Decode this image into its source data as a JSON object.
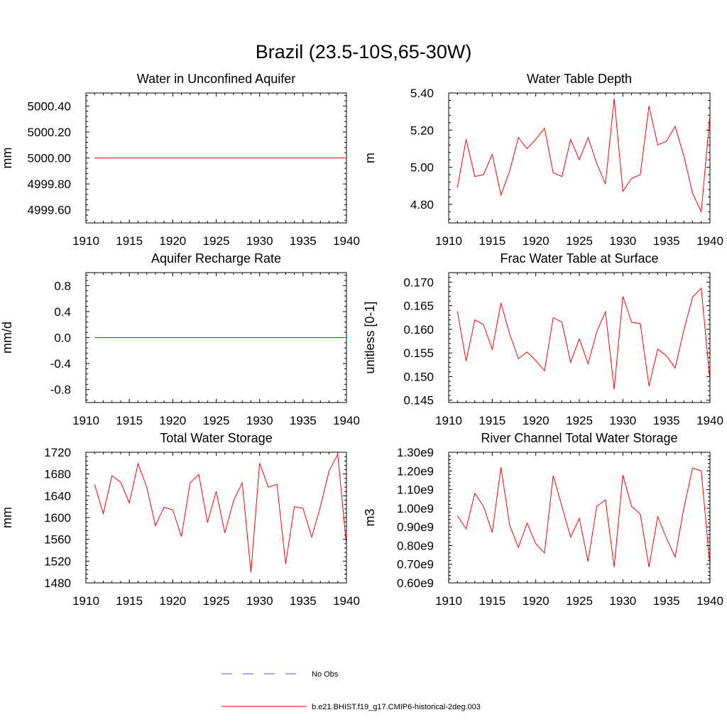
{
  "figure": {
    "title": "Brazil (23.5-10S,65-30W)"
  },
  "legend": {
    "entries": [
      {
        "label": "No Obs",
        "color": "#5a5ad8",
        "style": "dashed"
      },
      {
        "label": "b.e21.BHIST.f19_g17.CMIP6-historical-2deg.003",
        "color": "#ff0000",
        "style": "solid"
      }
    ]
  },
  "chart_data": [
    {
      "type": "line",
      "title": "Water in Unconfined Aquifer",
      "xlabel": "",
      "ylabel": "mm",
      "xlim": [
        1910,
        1940
      ],
      "ylim": [
        4999.5,
        5000.5
      ],
      "xticks": [
        1910,
        1915,
        1920,
        1925,
        1930,
        1935,
        1940
      ],
      "xtick_labels": [
        "1910",
        "1915",
        "1920",
        "1925",
        "1930",
        "1935",
        "1940"
      ],
      "yticks": [
        4999.6,
        4999.8,
        5000.0,
        5000.2,
        5000.4
      ],
      "ytick_labels": [
        "4999.60",
        "4999.80",
        "5000.00",
        "5000.20",
        "5000.40"
      ],
      "grid": false,
      "series": [
        {
          "color": "#ff0000",
          "x": [
            1911,
            1912,
            1913,
            1914,
            1915,
            1916,
            1917,
            1918,
            1919,
            1920,
            1921,
            1922,
            1923,
            1924,
            1925,
            1926,
            1927,
            1928,
            1929,
            1930,
            1931,
            1932,
            1933,
            1934,
            1935,
            1936,
            1937,
            1938,
            1939,
            1940
          ],
          "y": [
            5000,
            5000,
            5000,
            5000,
            5000,
            5000,
            5000,
            5000,
            5000,
            5000,
            5000,
            5000,
            5000,
            5000,
            5000,
            5000,
            5000,
            5000,
            5000,
            5000,
            5000,
            5000,
            5000,
            5000,
            5000,
            5000,
            5000,
            5000,
            5000,
            5000
          ]
        }
      ]
    },
    {
      "type": "line",
      "title": "Water Table Depth",
      "xlabel": "",
      "ylabel": "m",
      "xlim": [
        1910,
        1940
      ],
      "ylim": [
        4.7,
        5.4
      ],
      "xticks": [
        1910,
        1915,
        1920,
        1925,
        1930,
        1935,
        1940
      ],
      "xtick_labels": [
        "1910",
        "1915",
        "1920",
        "1925",
        "1930",
        "1935",
        "1940"
      ],
      "yticks": [
        4.8,
        5.0,
        5.2,
        5.4
      ],
      "ytick_labels": [
        "4.80",
        "5.00",
        "5.20",
        "5.40"
      ],
      "grid": false,
      "series": [
        {
          "color": "#ff0000",
          "x": [
            1911,
            1912,
            1913,
            1914,
            1915,
            1916,
            1917,
            1918,
            1919,
            1920,
            1921,
            1922,
            1923,
            1924,
            1925,
            1926,
            1927,
            1928,
            1929,
            1930,
            1931,
            1932,
            1933,
            1934,
            1935,
            1936,
            1937,
            1938,
            1939,
            1940
          ],
          "y": [
            4.89,
            5.15,
            4.95,
            4.96,
            5.07,
            4.85,
            4.98,
            5.16,
            5.1,
            5.15,
            5.21,
            4.97,
            4.95,
            5.15,
            5.04,
            5.16,
            5.02,
            4.91,
            5.37,
            4.87,
            4.94,
            4.96,
            5.33,
            5.12,
            5.14,
            5.22,
            5.06,
            4.86,
            4.76,
            5.28
          ]
        }
      ]
    },
    {
      "type": "line",
      "title": "Aquifer Recharge Rate",
      "xlabel": "",
      "ylabel": "mm/d",
      "xlim": [
        1910,
        1940
      ],
      "ylim": [
        -1.0,
        1.0
      ],
      "xticks": [
        1910,
        1915,
        1920,
        1925,
        1930,
        1935,
        1940
      ],
      "xtick_labels": [
        "1910",
        "1915",
        "1920",
        "1925",
        "1930",
        "1935",
        "1940"
      ],
      "yticks": [
        -0.8,
        -0.4,
        0.0,
        0.4,
        0.8
      ],
      "ytick_labels": [
        "-0.8",
        "-0.4",
        "0.0",
        "0.4",
        "0.8"
      ],
      "grid": false,
      "series": [
        {
          "color": "#ff0000",
          "x": [
            1911,
            1912,
            1913,
            1914,
            1915,
            1916,
            1917,
            1918,
            1919,
            1920,
            1921,
            1922,
            1923,
            1924,
            1925,
            1926,
            1927,
            1928,
            1929,
            1930,
            1931,
            1932,
            1933,
            1934,
            1935,
            1936,
            1937,
            1938,
            1939,
            1940
          ],
          "y": [
            0,
            0,
            0,
            0,
            0,
            0,
            0,
            0,
            0,
            0,
            0,
            0,
            0,
            0,
            0,
            0,
            0,
            0,
            0,
            0,
            0,
            0,
            0,
            0,
            0,
            0,
            0,
            0,
            0,
            0
          ]
        }
      ]
    },
    {
      "type": "line",
      "title": "Frac Water Table at Surface",
      "xlabel": "",
      "ylabel": "unitless [0-1]",
      "xlim": [
        1910,
        1940
      ],
      "ylim": [
        0.1445,
        0.172
      ],
      "xticks": [
        1910,
        1915,
        1920,
        1925,
        1930,
        1935,
        1940
      ],
      "xtick_labels": [
        "1910",
        "1915",
        "1920",
        "1925",
        "1930",
        "1935",
        "1940"
      ],
      "yticks": [
        0.145,
        0.15,
        0.155,
        0.16,
        0.165,
        0.17
      ],
      "ytick_labels": [
        "0.145",
        "0.150",
        "0.155",
        "0.160",
        "0.165",
        "0.170"
      ],
      "grid": false,
      "series": [
        {
          "color": "#ff0000",
          "x": [
            1911,
            1912,
            1913,
            1914,
            1915,
            1916,
            1917,
            1918,
            1919,
            1920,
            1921,
            1922,
            1923,
            1924,
            1925,
            1926,
            1927,
            1928,
            1929,
            1930,
            1931,
            1932,
            1933,
            1934,
            1935,
            1936,
            1937,
            1938,
            1939,
            1940
          ],
          "y": [
            0.1638,
            0.1533,
            0.162,
            0.161,
            0.1557,
            0.1656,
            0.159,
            0.1538,
            0.1552,
            0.1534,
            0.1512,
            0.1625,
            0.1615,
            0.153,
            0.158,
            0.1527,
            0.1595,
            0.1637,
            0.1473,
            0.167,
            0.1615,
            0.1612,
            0.148,
            0.1558,
            0.1544,
            0.1518,
            0.1598,
            0.1668,
            0.1687,
            0.149
          ]
        }
      ]
    },
    {
      "type": "line",
      "title": "Total Water Storage",
      "xlabel": "",
      "ylabel": "mm",
      "xlim": [
        1910,
        1940
      ],
      "ylim": [
        1480,
        1720
      ],
      "xticks": [
        1910,
        1915,
        1920,
        1925,
        1930,
        1935,
        1940
      ],
      "xtick_labels": [
        "1910",
        "1915",
        "1920",
        "1925",
        "1930",
        "1935",
        "1940"
      ],
      "yticks": [
        1480,
        1520,
        1560,
        1600,
        1640,
        1680,
        1720
      ],
      "ytick_labels": [
        "1480",
        "1520",
        "1560",
        "1600",
        "1640",
        "1680",
        "1720"
      ],
      "grid": false,
      "series": [
        {
          "color": "#ff0000",
          "x": [
            1911,
            1912,
            1913,
            1914,
            1915,
            1916,
            1917,
            1918,
            1919,
            1920,
            1921,
            1922,
            1923,
            1924,
            1925,
            1926,
            1927,
            1928,
            1929,
            1930,
            1931,
            1932,
            1933,
            1934,
            1935,
            1936,
            1937,
            1938,
            1939,
            1940
          ],
          "y": [
            1661,
            1607,
            1677,
            1665,
            1627,
            1699,
            1656,
            1585,
            1619,
            1614,
            1565,
            1664,
            1679,
            1591,
            1648,
            1572,
            1631,
            1664,
            1499,
            1700,
            1656,
            1661,
            1515,
            1620,
            1617,
            1564,
            1620,
            1686,
            1716,
            1548
          ]
        }
      ]
    },
    {
      "type": "line",
      "title": "River Channel Total Water Storage",
      "xlabel": "",
      "ylabel": "m3",
      "xlim": [
        1910,
        1940
      ],
      "ylim": [
        600000000,
        1300000000
      ],
      "xticks": [
        1910,
        1915,
        1920,
        1925,
        1930,
        1935,
        1940
      ],
      "xtick_labels": [
        "1910",
        "1915",
        "1920",
        "1925",
        "1930",
        "1935",
        "1940"
      ],
      "yticks": [
        600000000,
        700000000,
        800000000,
        900000000,
        1000000000,
        1100000000,
        1200000000,
        1300000000
      ],
      "ytick_labels": [
        "0.60e9",
        "0.70e9",
        "0.80e9",
        "0.90e9",
        "1.00e9",
        "1.10e9",
        "1.20e9",
        "1.30e9"
      ],
      "grid": false,
      "series": [
        {
          "color": "#ff0000",
          "x": [
            1911,
            1912,
            1913,
            1914,
            1915,
            1916,
            1917,
            1918,
            1919,
            1920,
            1921,
            1922,
            1923,
            1924,
            1925,
            1926,
            1927,
            1928,
            1929,
            1930,
            1931,
            1932,
            1933,
            1934,
            1935,
            1936,
            1937,
            1938,
            1939,
            1940
          ],
          "y": [
            960000000,
            890000000,
            1080000000,
            1010000000,
            870000000,
            1220000000,
            910000000,
            790000000,
            920000000,
            810000000,
            760000000,
            1175000000,
            1010000000,
            845000000,
            945000000,
            715000000,
            1010000000,
            1045000000,
            685000000,
            1178000000,
            1010000000,
            968000000,
            685000000,
            955000000,
            840000000,
            738000000,
            1000000000,
            1215000000,
            1200000000,
            690000000
          ]
        }
      ]
    }
  ]
}
